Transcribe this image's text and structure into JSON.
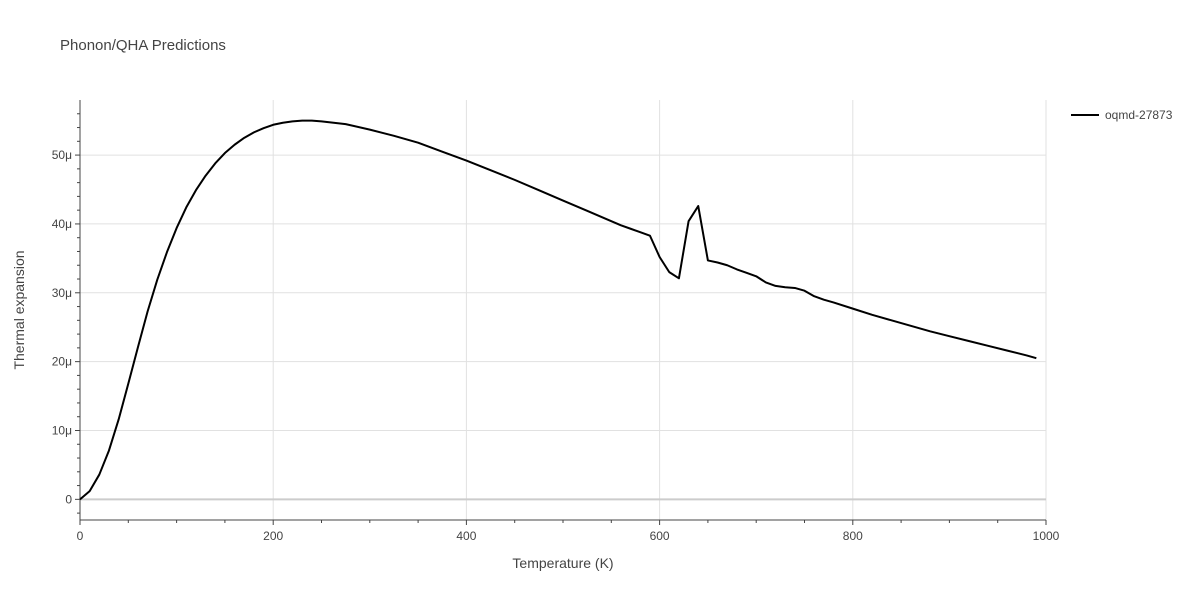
{
  "chart_data": {
    "type": "line",
    "title": "Phonon/QHA Predictions",
    "xlabel": "Temperature (K)",
    "ylabel": "Thermal expansion",
    "xlim": [
      0,
      1000
    ],
    "ylim": [
      -3e-06,
      5.8e-05
    ],
    "x_ticks": [
      0,
      200,
      400,
      600,
      800,
      1000
    ],
    "x_tick_labels": [
      "0",
      "200",
      "400",
      "600",
      "800",
      "1000"
    ],
    "y_ticks": [
      0,
      1e-05,
      2e-05,
      3e-05,
      4e-05,
      5e-05
    ],
    "y_tick_labels": [
      "0",
      "10μ",
      "20μ",
      "30μ",
      "40μ",
      "50μ"
    ],
    "grid": true,
    "legend_position": "top-right",
    "line_color": "#000000",
    "series": [
      {
        "name": "oqmd-27873",
        "x": [
          0,
          10,
          20,
          30,
          40,
          50,
          60,
          70,
          80,
          90,
          100,
          110,
          120,
          130,
          140,
          150,
          160,
          170,
          180,
          190,
          200,
          210,
          220,
          230,
          240,
          250,
          275,
          300,
          325,
          350,
          375,
          400,
          425,
          450,
          475,
          500,
          525,
          550,
          560,
          570,
          580,
          590,
          600,
          610,
          620,
          630,
          640,
          650,
          660,
          670,
          680,
          690,
          700,
          710,
          720,
          730,
          740,
          750,
          760,
          770,
          780,
          800,
          820,
          840,
          860,
          880,
          900,
          920,
          940,
          960,
          980,
          990
        ],
        "y": [
          0,
          1.2e-06,
          3.6e-06,
          7.1e-06,
          1.16e-05,
          1.68e-05,
          2.21e-05,
          2.73e-05,
          3.19e-05,
          3.59e-05,
          3.94e-05,
          4.24e-05,
          4.49e-05,
          4.7e-05,
          4.88e-05,
          5.03e-05,
          5.15e-05,
          5.25e-05,
          5.33e-05,
          5.39e-05,
          5.44e-05,
          5.47e-05,
          5.49e-05,
          5.5e-05,
          5.5e-05,
          5.49e-05,
          5.45e-05,
          5.37e-05,
          5.28e-05,
          5.18e-05,
          5.05e-05,
          4.92e-05,
          4.78e-05,
          4.64e-05,
          4.49e-05,
          4.34e-05,
          4.19e-05,
          4.04e-05,
          3.98e-05,
          3.93e-05,
          3.88e-05,
          3.83e-05,
          3.52e-05,
          3.3e-05,
          3.21e-05,
          4.04e-05,
          4.26e-05,
          3.47e-05,
          3.44e-05,
          3.4e-05,
          3.34e-05,
          3.29e-05,
          3.24e-05,
          3.15e-05,
          3.1e-05,
          3.08e-05,
          3.07e-05,
          3.03e-05,
          2.95e-05,
          2.9e-05,
          2.86e-05,
          2.77e-05,
          2.68e-05,
          2.6e-05,
          2.52e-05,
          2.44e-05,
          2.37e-05,
          2.3e-05,
          2.23e-05,
          2.16e-05,
          2.09e-05,
          2.05e-05
        ]
      }
    ]
  }
}
